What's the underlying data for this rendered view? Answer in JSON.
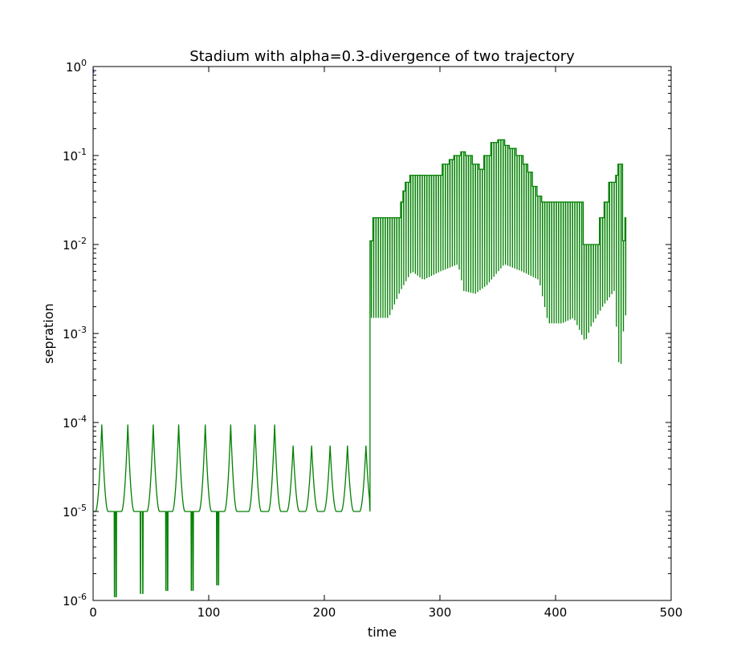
{
  "chart_data": {
    "type": "line",
    "title": "Stadium with alpha=0.3-divergence of two trajectory",
    "xlabel": "time",
    "ylabel": "sepration",
    "xlim": [
      0,
      500
    ],
    "ylim": [
      1e-06,
      1
    ],
    "yscale": "log",
    "grid": false,
    "x_ticks": [
      0,
      100,
      200,
      300,
      400,
      500
    ],
    "y_tick_labels": [
      {
        "base": "10",
        "exp": "0",
        "value": 1
      },
      {
        "base": "10",
        "exp": "-1",
        "value": 0.1
      },
      {
        "base": "10",
        "exp": "-2",
        "value": 0.01
      },
      {
        "base": "10",
        "exp": "-3",
        "value": 0.001
      },
      {
        "base": "10",
        "exp": "-4",
        "value": 0.0001
      },
      {
        "base": "10",
        "exp": "-5",
        "value": 1e-05
      },
      {
        "base": "10",
        "exp": "-6",
        "value": 1e-06
      }
    ],
    "series": [
      {
        "color": "#008000",
        "low_regime": {
          "x_range": [
            0,
            239
          ],
          "baseline": 1e-05,
          "peaks": [
            {
              "x": 7.5,
              "y": 9.5e-05
            },
            {
              "x": 30,
              "y": 9.5e-05
            },
            {
              "x": 52,
              "y": 9.5e-05
            },
            {
              "x": 74,
              "y": 9.5e-05
            },
            {
              "x": 97,
              "y": 9.5e-05
            },
            {
              "x": 119,
              "y": 9.5e-05
            },
            {
              "x": 140,
              "y": 9.5e-05
            },
            {
              "x": 157,
              "y": 9.5e-05
            },
            {
              "x": 173,
              "y": 5.5e-05
            },
            {
              "x": 189,
              "y": 5.5e-05
            },
            {
              "x": 205,
              "y": 5.5e-05
            },
            {
              "x": 220,
              "y": 5.5e-05
            },
            {
              "x": 236,
              "y": 5.5e-05
            }
          ],
          "dips": [
            {
              "x": 18.5,
              "y": 1.1e-06
            },
            {
              "x": 20,
              "y": 1.1e-06
            },
            {
              "x": 41,
              "y": 1.2e-06
            },
            {
              "x": 43,
              "y": 1.2e-06
            },
            {
              "x": 63,
              "y": 1.3e-06
            },
            {
              "x": 64.5,
              "y": 1.3e-06
            },
            {
              "x": 85,
              "y": 1.3e-06
            },
            {
              "x": 86.5,
              "y": 1.3e-06
            },
            {
              "x": 107,
              "y": 1.5e-06
            },
            {
              "x": 108.5,
              "y": 1.5e-06
            }
          ]
        },
        "jump": {
          "x": 239.5,
          "from": 1e-05,
          "to": 0.011
        },
        "high_regime": {
          "x_range": [
            239,
            460
          ],
          "envelope": [
            {
              "x": 239,
              "y": 0.011
            },
            {
              "x": 241,
              "y": 0.02
            },
            {
              "x": 263,
              "y": 0.02
            },
            {
              "x": 265,
              "y": 0.03
            },
            {
              "x": 267,
              "y": 0.04
            },
            {
              "x": 270,
              "y": 0.05
            },
            {
              "x": 273,
              "y": 0.06
            },
            {
              "x": 300,
              "y": 0.06
            },
            {
              "x": 302,
              "y": 0.08
            },
            {
              "x": 308,
              "y": 0.09
            },
            {
              "x": 312,
              "y": 0.1
            },
            {
              "x": 318,
              "y": 0.11
            },
            {
              "x": 322,
              "y": 0.1
            },
            {
              "x": 328,
              "y": 0.08
            },
            {
              "x": 333,
              "y": 0.07
            },
            {
              "x": 338,
              "y": 0.1
            },
            {
              "x": 344,
              "y": 0.14
            },
            {
              "x": 349,
              "y": 0.15
            },
            {
              "x": 355,
              "y": 0.13
            },
            {
              "x": 360,
              "y": 0.12
            },
            {
              "x": 366,
              "y": 0.1
            },
            {
              "x": 372,
              "y": 0.08
            },
            {
              "x": 376,
              "y": 0.065
            },
            {
              "x": 380,
              "y": 0.045
            },
            {
              "x": 384,
              "y": 0.035
            },
            {
              "x": 388,
              "y": 0.03
            },
            {
              "x": 420,
              "y": 0.03
            },
            {
              "x": 423,
              "y": 0.01
            },
            {
              "x": 435,
              "y": 0.01
            },
            {
              "x": 438,
              "y": 0.02
            },
            {
              "x": 441,
              "y": 0.03
            },
            {
              "x": 446,
              "y": 0.05
            },
            {
              "x": 451,
              "y": 0.06
            },
            {
              "x": 454,
              "y": 0.08
            },
            {
              "x": 457,
              "y": 0.011
            },
            {
              "x": 460,
              "y": 0.02
            }
          ],
          "dip_floor": [
            {
              "x": 239,
              "y": 0.0015
            },
            {
              "x": 255,
              "y": 0.0015
            },
            {
              "x": 265,
              "y": 0.003
            },
            {
              "x": 275,
              "y": 0.005
            },
            {
              "x": 285,
              "y": 0.004
            },
            {
              "x": 300,
              "y": 0.005
            },
            {
              "x": 315,
              "y": 0.006
            },
            {
              "x": 320,
              "y": 0.003
            },
            {
              "x": 330,
              "y": 0.0028
            },
            {
              "x": 340,
              "y": 0.0035
            },
            {
              "x": 355,
              "y": 0.006
            },
            {
              "x": 370,
              "y": 0.005
            },
            {
              "x": 385,
              "y": 0.004
            },
            {
              "x": 393,
              "y": 0.0013
            },
            {
              "x": 405,
              "y": 0.0013
            },
            {
              "x": 415,
              "y": 0.0015
            },
            {
              "x": 425,
              "y": 0.0008
            },
            {
              "x": 430,
              "y": 0.0012
            },
            {
              "x": 440,
              "y": 0.002
            },
            {
              "x": 450,
              "y": 0.003
            },
            {
              "x": 455,
              "y": 0.0003
            },
            {
              "x": 459,
              "y": 0.0016
            }
          ],
          "notable_dips": [
            {
              "x": 455,
              "y": 0.0003
            },
            {
              "x": 425,
              "y": 0.00078
            },
            {
              "x": 431,
              "y": 0.00085
            }
          ],
          "end": {
            "x": 460,
            "y": 0.02
          }
        }
      },
      {
        "color": "#0000ff",
        "points": [
          {
            "x": 0,
            "y": 0.95
          },
          {
            "x": 0.5,
            "y": 0.85
          }
        ]
      }
    ]
  }
}
